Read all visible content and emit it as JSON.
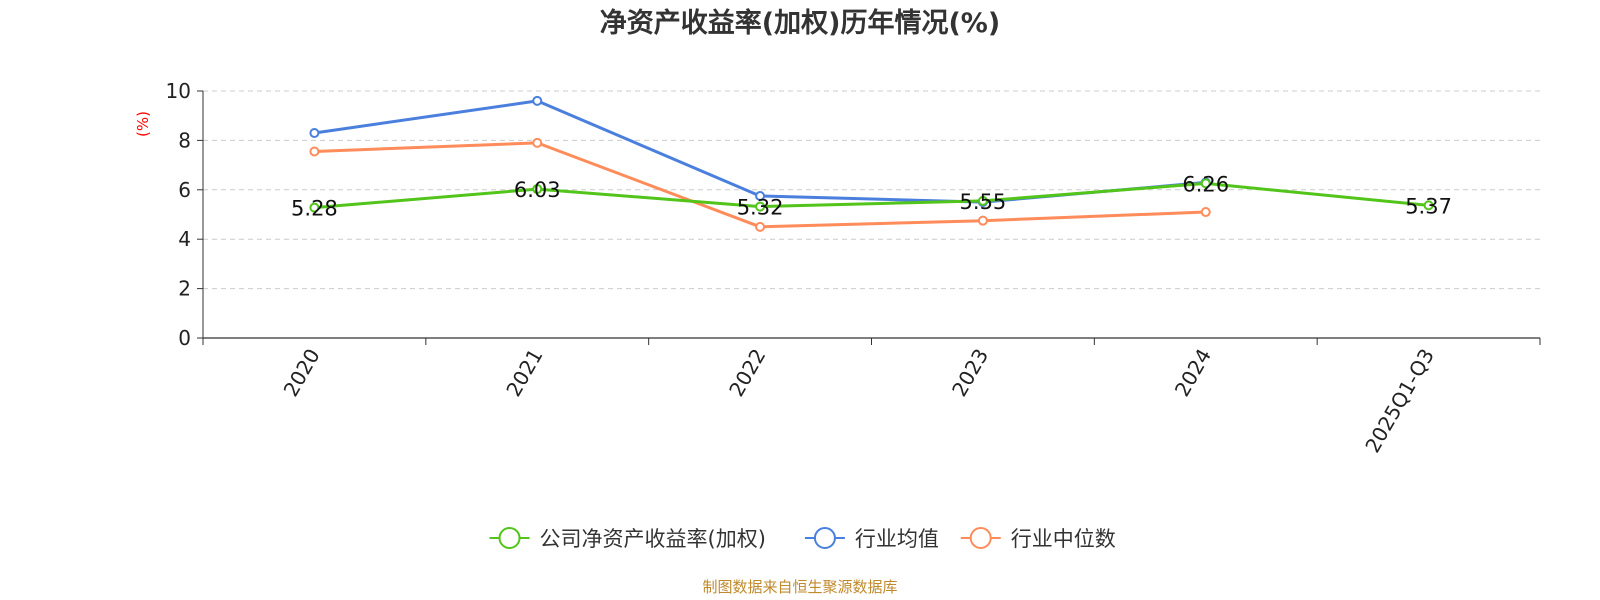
{
  "chart_data": {
    "type": "line",
    "title": "净资产收益率(加权)历年情况(%)",
    "ylabel": "(%)",
    "xlabel": "",
    "categories": [
      "2020",
      "2021",
      "2022",
      "2023",
      "2024",
      "2025Q1-Q3"
    ],
    "ylim": [
      0,
      10
    ],
    "yticks": [
      0,
      2,
      4,
      6,
      8,
      10
    ],
    "grid": true,
    "legend_position": "bottom-center",
    "series": [
      {
        "name": "公司净资产收益率(加权)",
        "color": "#52c41a",
        "values": [
          5.28,
          6.03,
          5.32,
          5.55,
          6.26,
          5.37
        ],
        "labels": [
          "5.28",
          "6.03",
          "5.32",
          "5.55",
          "6.26",
          "5.37"
        ]
      },
      {
        "name": "行业均值",
        "color": "#4a7fdd",
        "values": [
          8.3,
          9.6,
          5.75,
          5.5,
          6.3,
          null
        ]
      },
      {
        "name": "行业中位数",
        "color": "#ff8c5a",
        "values": [
          7.55,
          7.9,
          4.5,
          4.75,
          5.1,
          null
        ]
      }
    ],
    "source": "制图数据来自恒生聚源数据库"
  }
}
